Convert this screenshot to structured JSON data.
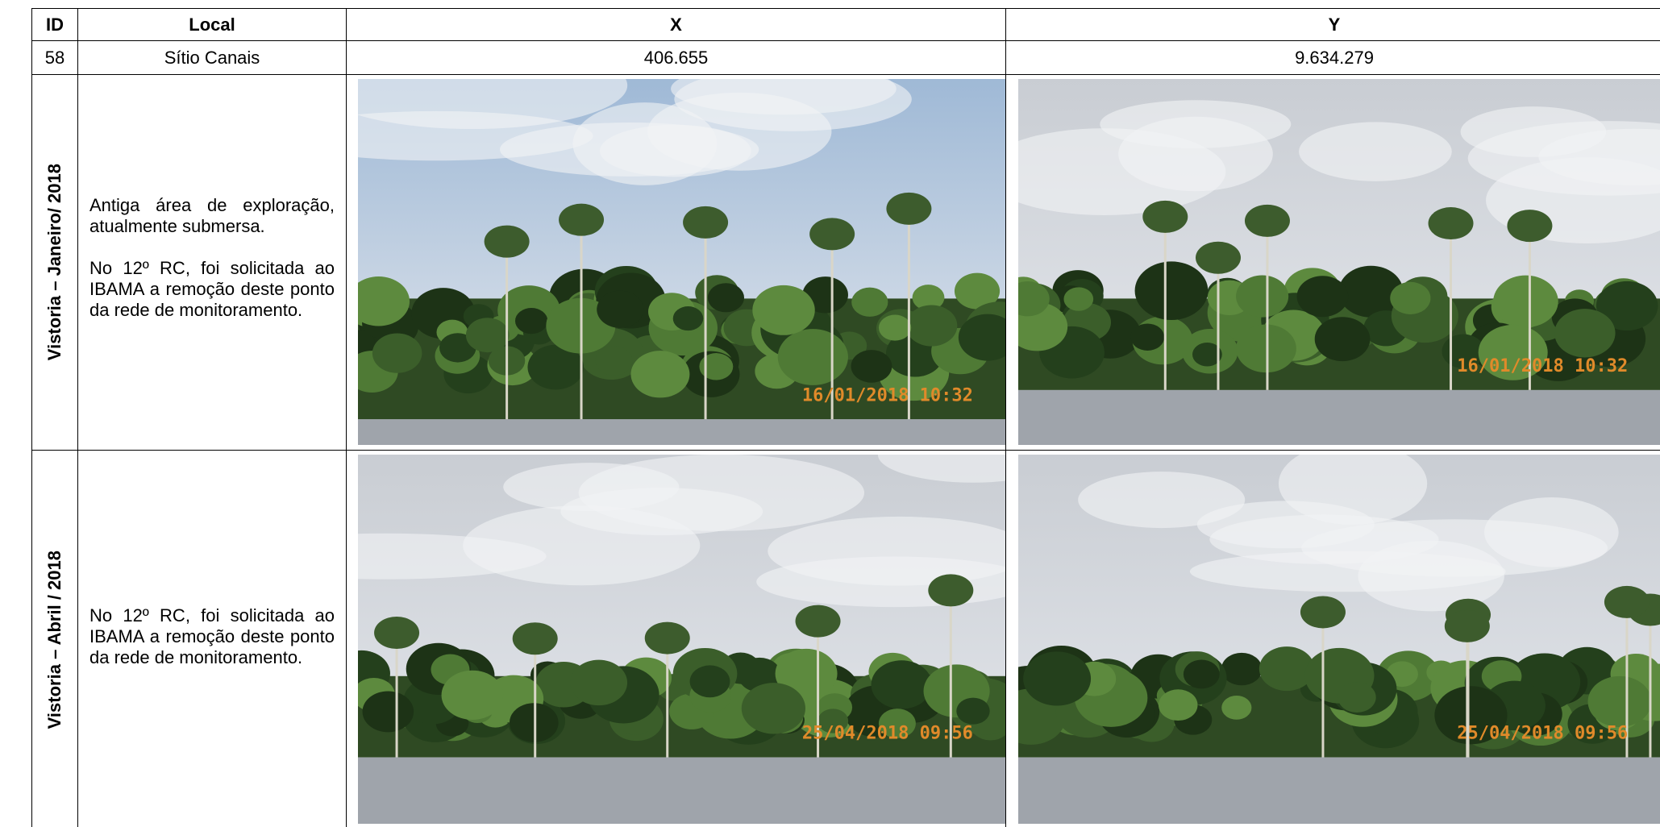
{
  "table": {
    "header": [
      "ID",
      "Local",
      "X",
      "Y"
    ],
    "rows": [
      [
        "58",
        "Sítio Canais",
        "406.655",
        "9.634.279"
      ]
    ]
  },
  "inspections": [
    {
      "label": "Vistoria – Janeiro/ 2018",
      "paragraphs": [
        "Antiga área de exploração, atualmente submersa.",
        "No 12º RC, foi solicitada ao IBAMA a remoção deste ponto da rede de monitoramento."
      ],
      "photos": [
        {
          "timestamp": "16/01/2018 10:32"
        },
        {
          "timestamp": "16/01/2018 10:32"
        }
      ]
    },
    {
      "label": "Vistoria – Abril / 2018",
      "paragraphs": [
        "No 12º RC, foi solicitada ao IBAMA a remoção deste ponto da rede de monitoramento."
      ],
      "photos": [
        {
          "timestamp": "25/04/2018 09:56"
        },
        {
          "timestamp": "25/04/2018 09:56"
        }
      ]
    }
  ]
}
